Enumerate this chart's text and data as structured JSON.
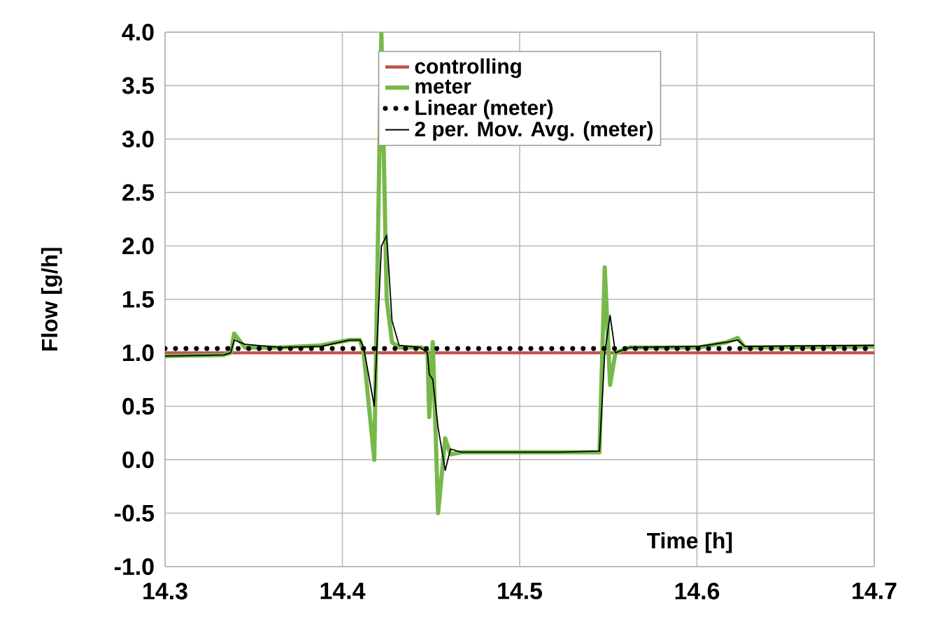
{
  "chart_data": {
    "type": "line",
    "xlabel": "Time [h]",
    "ylabel": "Flow [g/h]",
    "xlim": [
      14.3,
      14.7
    ],
    "xticks": [
      14.3,
      14.4,
      14.5,
      14.6,
      14.7
    ],
    "ylim": [
      -1.0,
      4.0
    ],
    "yticks": [
      {
        "value": -1.0,
        "label": "-1.0"
      },
      {
        "value": -0.5,
        "label": "-0.5"
      },
      {
        "value": 0,
        "label": "0.0"
      },
      {
        "value": 0.5,
        "label": "0.5"
      },
      {
        "value": 1.0,
        "label": "1.0"
      },
      {
        "value": 1.5,
        "label": "1.5"
      },
      {
        "value": 2.0,
        "label": "2.0"
      },
      {
        "value": 2.5,
        "label": "2.5"
      },
      {
        "value": 3.0,
        "label": "3.0"
      },
      {
        "value": 3.5,
        "label": "3.5"
      },
      {
        "value": 4.0,
        "label": "4.0"
      }
    ],
    "grid": true,
    "legend": "top",
    "marker": "none",
    "series": [
      {
        "name": "controlling",
        "color": "#c0504d",
        "line_style": "solid",
        "x": [
          14.3,
          14.7
        ],
        "values": [
          1.0,
          1.0
        ]
      },
      {
        "name": "meter",
        "color": "#77b84a",
        "line_style": "solid",
        "x": [
          14.3,
          14.333,
          14.337,
          14.339,
          14.345,
          14.365,
          14.388,
          14.404,
          14.41,
          14.412,
          14.418,
          14.422,
          14.425,
          14.428,
          14.432,
          14.444,
          14.448,
          14.449,
          14.451,
          14.454,
          14.458,
          14.461,
          14.467,
          14.491,
          14.522,
          14.545,
          14.548,
          14.551,
          14.554,
          14.562,
          14.601,
          14.617,
          14.623,
          14.627,
          14.7
        ],
        "values": [
          0.97,
          0.98,
          1.0,
          1.18,
          1.05,
          1.05,
          1.07,
          1.12,
          1.12,
          1.0,
          0.0,
          4.0,
          1.5,
          1.1,
          1.05,
          1.05,
          1.03,
          0.4,
          1.1,
          -0.5,
          0.2,
          0.05,
          0.07,
          0.07,
          0.07,
          0.07,
          1.8,
          0.7,
          1.0,
          1.05,
          1.05,
          1.1,
          1.14,
          1.05,
          1.06
        ]
      },
      {
        "name": "Linear (meter)",
        "color": "#000000",
        "line_style": "dotted",
        "x": [
          14.3,
          14.7
        ],
        "values": [
          1.04,
          1.04
        ]
      },
      {
        "name": "2 per. Mov. Avg. (meter)",
        "color": "#000000",
        "line_style": "solid",
        "x": [
          14.3,
          14.333,
          14.337,
          14.339,
          14.345,
          14.365,
          14.388,
          14.404,
          14.41,
          14.412,
          14.418,
          14.422,
          14.425,
          14.428,
          14.432,
          14.444,
          14.448,
          14.449,
          14.451,
          14.454,
          14.458,
          14.461,
          14.467,
          14.491,
          14.522,
          14.545,
          14.548,
          14.551,
          14.554,
          14.562,
          14.601,
          14.617,
          14.623,
          14.627,
          14.7
        ],
        "values": [
          0.97,
          0.98,
          1.0,
          1.12,
          1.08,
          1.05,
          1.06,
          1.12,
          1.12,
          1.05,
          0.5,
          2.0,
          2.1,
          1.3,
          1.07,
          1.05,
          1.0,
          0.8,
          0.75,
          0.3,
          -0.1,
          0.1,
          0.07,
          0.07,
          0.07,
          0.08,
          1.0,
          1.35,
          1.0,
          1.05,
          1.06,
          1.1,
          1.12,
          1.06,
          1.07
        ]
      }
    ]
  }
}
